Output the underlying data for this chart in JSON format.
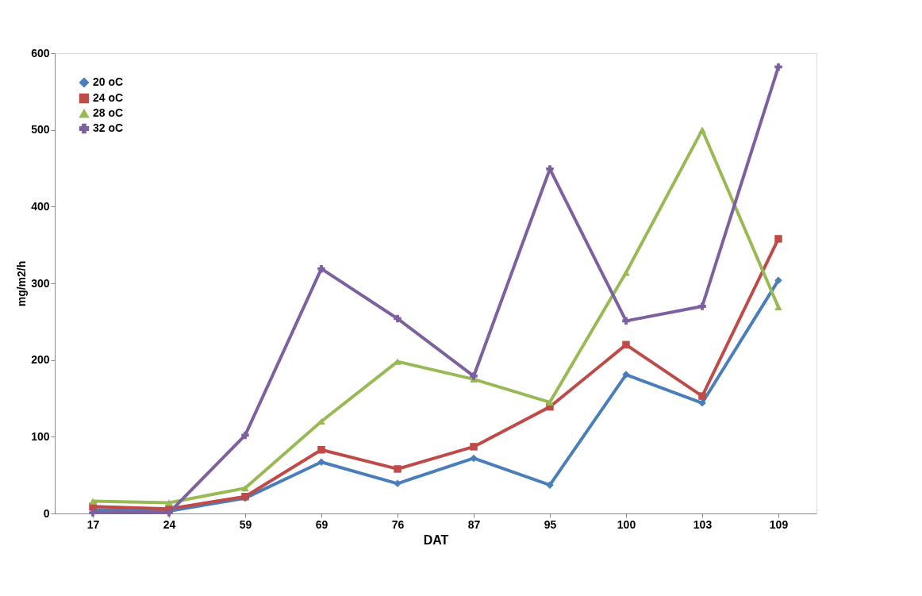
{
  "chart_data": {
    "type": "line",
    "xlabel": "DAT",
    "ylabel": "mg/m2/h",
    "categories": [
      "17",
      "24",
      "59",
      "69",
      "76",
      "87",
      "95",
      "100",
      "103",
      "109"
    ],
    "series": [
      {
        "name": "20 oC",
        "color": "#4a7ebb",
        "marker": "diamond",
        "values": [
          5,
          3,
          20,
          67,
          39,
          72,
          37,
          181,
          144,
          304
        ]
      },
      {
        "name": "24 oC",
        "color": "#be4b48",
        "marker": "square",
        "values": [
          9,
          6,
          22,
          83,
          58,
          87,
          139,
          220,
          153,
          358
        ]
      },
      {
        "name": "28 oC",
        "color": "#98b954",
        "marker": "triangle",
        "values": [
          16,
          14,
          33,
          120,
          198,
          175,
          145,
          314,
          500,
          269
        ]
      },
      {
        "name": "32 oC",
        "color": "#7d60a0",
        "marker": "cross",
        "values": [
          1,
          1,
          102,
          319,
          254,
          179,
          449,
          251,
          270,
          582
        ]
      }
    ],
    "ylim": [
      0,
      600
    ],
    "yticks": [
      0,
      100,
      200,
      300,
      400,
      500,
      600
    ],
    "grid": false,
    "legend": "top left",
    "line_style": "solid"
  }
}
